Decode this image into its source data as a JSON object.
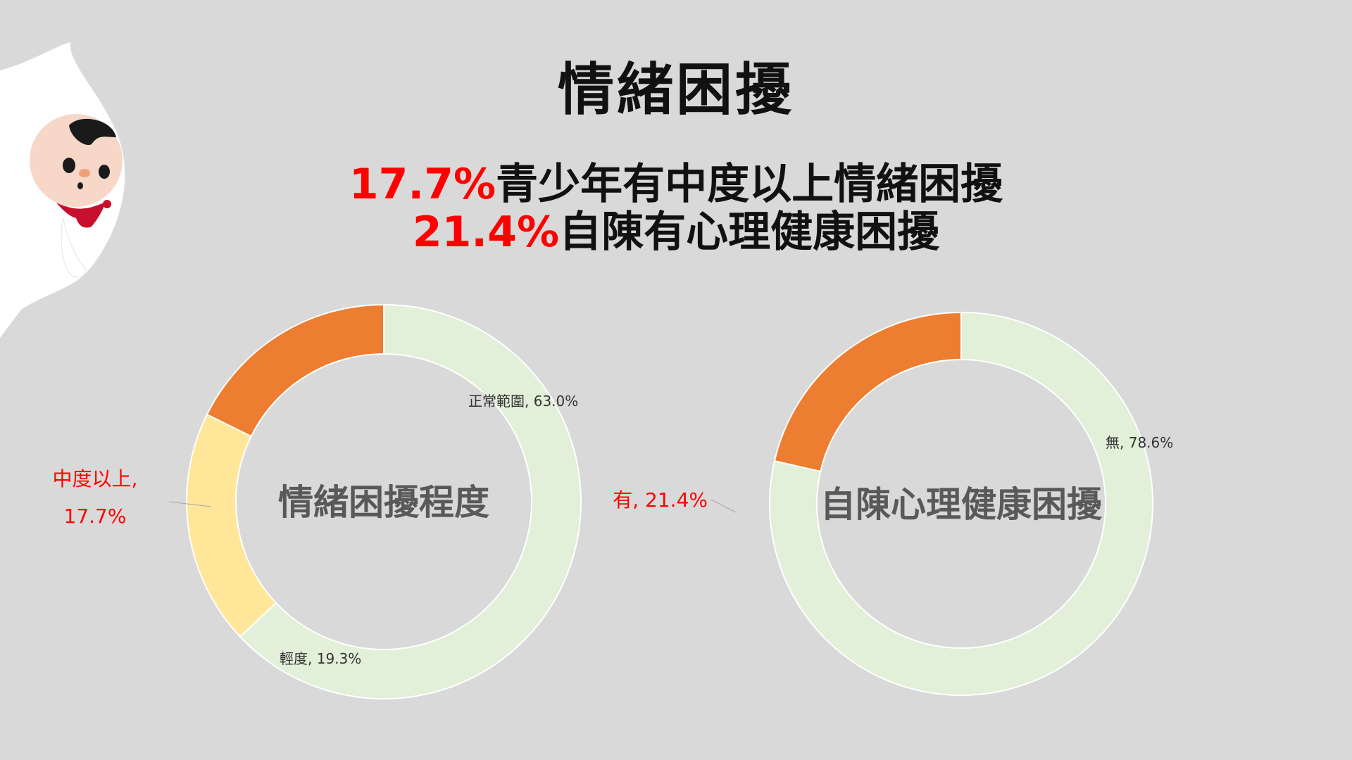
{
  "header": {
    "title": "情緒困擾",
    "line1_highlight": "17.7%",
    "line1_text": "青少年有中度以上情緒困擾",
    "line2_highlight": "21.4%",
    "line2_text": "自陳有心理健康困擾"
  },
  "colors": {
    "normal": "#e2efd9",
    "mild": "#ffe699",
    "moderate": "#ed7d31",
    "highlight_text": "#ff0000",
    "background": "#d9d9d9"
  },
  "chart_data": [
    {
      "type": "pie",
      "donut": true,
      "center_label": "情緒困擾程度",
      "slices": [
        {
          "label": "正常範圍",
          "value": 63.0,
          "display": "正常範圍, 63.0%",
          "color": "#e2efd9"
        },
        {
          "label": "輕度",
          "value": 19.3,
          "display": "輕度, 19.3%",
          "color": "#ffe699"
        },
        {
          "label": "中度以上",
          "value": 17.7,
          "display": "中度以上,",
          "display2": "17.7%",
          "color": "#ed7d31",
          "highlight": true
        }
      ]
    },
    {
      "type": "pie",
      "donut": true,
      "center_label": "自陳心理健康困擾",
      "slices": [
        {
          "label": "無",
          "value": 78.6,
          "display": "無, 78.6%",
          "color": "#e2efd9"
        },
        {
          "label": "有",
          "value": 21.4,
          "display": "有, 21.4%",
          "color": "#ed7d31",
          "highlight": true
        }
      ]
    }
  ]
}
